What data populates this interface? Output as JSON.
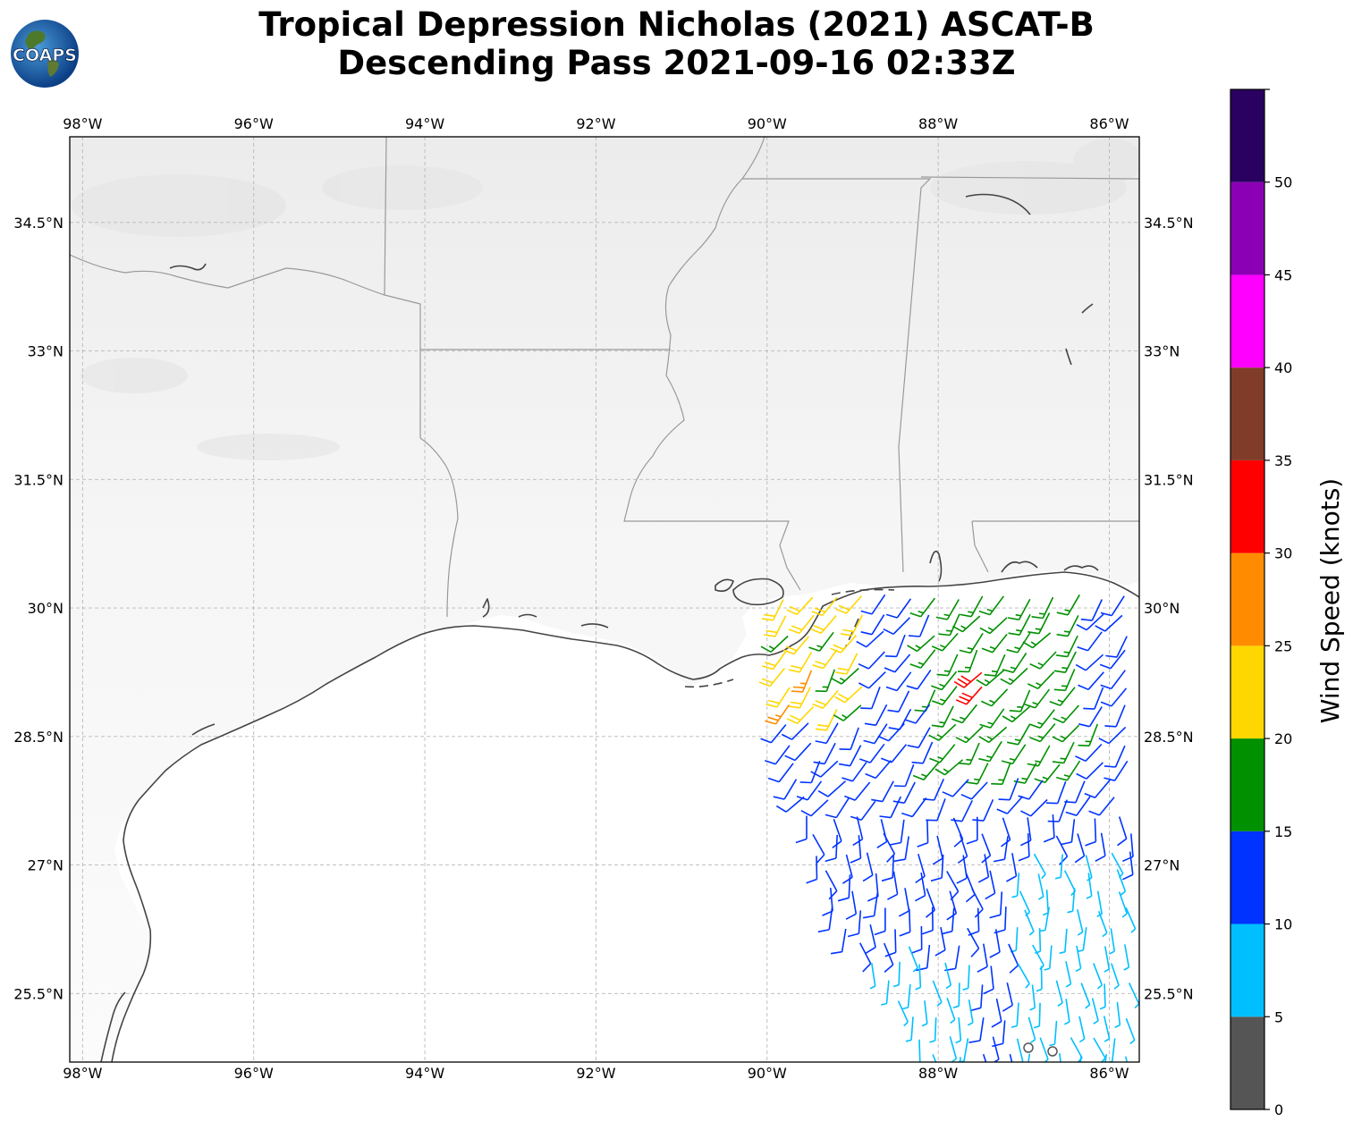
{
  "title": {
    "line1": "Tropical Depression Nicholas (2021) ASCAT-B",
    "line2": "Descending Pass 2021-09-16 02:33Z"
  },
  "logo": {
    "text": "COAPS"
  },
  "map": {
    "lon_range": [
      -98.15,
      -85.65
    ],
    "lat_range": [
      24.7,
      35.5
    ],
    "lon_ticks": [
      {
        "value": -98,
        "label": "98°W"
      },
      {
        "value": -96,
        "label": "96°W"
      },
      {
        "value": -94,
        "label": "94°W"
      },
      {
        "value": -92,
        "label": "92°W"
      },
      {
        "value": -90,
        "label": "90°W"
      },
      {
        "value": -88,
        "label": "88°W"
      },
      {
        "value": -86,
        "label": "86°W"
      }
    ],
    "lat_ticks": [
      {
        "value": 34.5,
        "label": "34.5°N"
      },
      {
        "value": 33,
        "label": "33°N"
      },
      {
        "value": 31.5,
        "label": "31.5°N"
      },
      {
        "value": 30,
        "label": "30°N"
      },
      {
        "value": 28.5,
        "label": "28.5°N"
      },
      {
        "value": 27,
        "label": "27°N"
      },
      {
        "value": 25.5,
        "label": "25.5°N"
      }
    ],
    "gridlines": true
  },
  "colorbar": {
    "label": "Wind Speed (knots)",
    "bins": [
      {
        "min": 0,
        "max": 5,
        "color": "#555555"
      },
      {
        "min": 5,
        "max": 10,
        "color": "#00bfff"
      },
      {
        "min": 10,
        "max": 15,
        "color": "#0033ff"
      },
      {
        "min": 15,
        "max": 20,
        "color": "#009000"
      },
      {
        "min": 20,
        "max": 25,
        "color": "#ffd700"
      },
      {
        "min": 25,
        "max": 30,
        "color": "#ff8c00"
      },
      {
        "min": 30,
        "max": 35,
        "color": "#ff0000"
      },
      {
        "min": 35,
        "max": 40,
        "color": "#803c28"
      },
      {
        "min": 40,
        "max": 45,
        "color": "#ff00ff"
      },
      {
        "min": 45,
        "max": 50,
        "color": "#8b00b5"
      },
      {
        "min": 50,
        "max": 55,
        "color": "#2a0060"
      }
    ],
    "tick_labels": [
      "0",
      "5",
      "10",
      "15",
      "20",
      "25",
      "30",
      "35",
      "40",
      "45",
      "50"
    ]
  }
}
